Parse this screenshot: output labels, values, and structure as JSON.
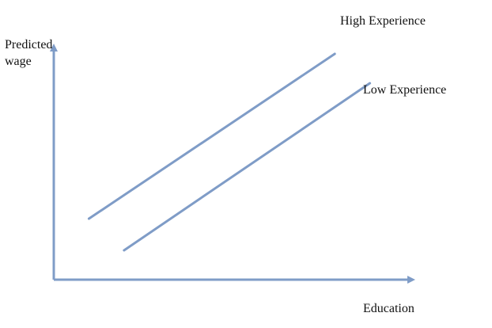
{
  "chart_data": {
    "type": "line",
    "title": "",
    "xlabel": "Education",
    "ylabel_lines": [
      "Predicted",
      "wage"
    ],
    "xlim": [
      0,
      10
    ],
    "ylim": [
      0,
      10
    ],
    "grid": false,
    "colors": {
      "line": "#7f9cc7",
      "axis": "#7f9cc7",
      "text": "#111111"
    },
    "series": [
      {
        "name": "High Experience",
        "x": [
          1,
          8
        ],
        "y": [
          2.7,
          10
        ]
      },
      {
        "name": "Low Experience",
        "x": [
          2,
          9
        ],
        "y": [
          1.3,
          8.7
        ]
      }
    ]
  }
}
